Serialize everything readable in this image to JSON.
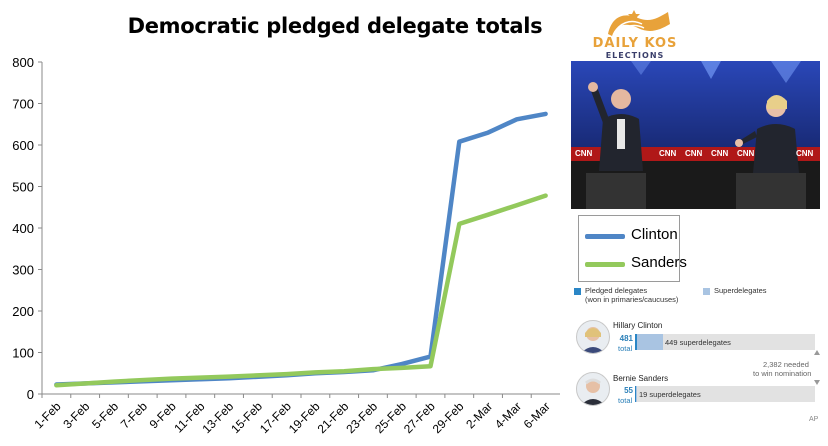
{
  "chart_data": {
    "type": "line",
    "title": "Democratic pledged delegate totals",
    "categories": [
      "1-Feb",
      "3-Feb",
      "5-Feb",
      "7-Feb",
      "9-Feb",
      "11-Feb",
      "13-Feb",
      "15-Feb",
      "17-Feb",
      "19-Feb",
      "21-Feb",
      "23-Feb",
      "25-Feb",
      "27-Feb",
      "29-Feb",
      "2-Mar",
      "4-Mar",
      "6-Mar"
    ],
    "ylim": [
      0,
      800
    ],
    "yticks": [
      0,
      100,
      200,
      300,
      400,
      500,
      600,
      700,
      800
    ],
    "grid": false,
    "legend_position": "right",
    "series": [
      {
        "name": "Clinton",
        "color": "#4f86c6",
        "points": [
          [
            0,
            23
          ],
          [
            2,
            28
          ],
          [
            4,
            33
          ],
          [
            6,
            38
          ],
          [
            8,
            45
          ],
          [
            9,
            50
          ],
          [
            10,
            53
          ],
          [
            11,
            57
          ],
          [
            12,
            72
          ],
          [
            13,
            90
          ],
          [
            14,
            608
          ],
          [
            15,
            630
          ],
          [
            16,
            662
          ],
          [
            17,
            675
          ]
        ]
      },
      {
        "name": "Sanders",
        "color": "#93c95c",
        "points": [
          [
            0,
            21
          ],
          [
            2,
            30
          ],
          [
            4,
            37
          ],
          [
            6,
            42
          ],
          [
            8,
            48
          ],
          [
            9,
            52
          ],
          [
            10,
            55
          ],
          [
            11,
            60
          ],
          [
            12,
            63
          ],
          [
            13,
            67
          ],
          [
            14,
            410
          ],
          [
            15,
            432
          ],
          [
            16,
            455
          ],
          [
            17,
            478
          ]
        ]
      }
    ]
  },
  "logo": {
    "line1": "DAILY KOS",
    "line2": "ELECTIONS"
  },
  "photo": {
    "signs": [
      "CNN",
      "CNN",
      "CNN",
      "CNN",
      "CNN",
      "CNN"
    ]
  },
  "delegates": {
    "legend_pledged": "Pledged delegates",
    "legend_pledged_sub": "(won in primaries/caucuses)",
    "legend_super": "Superdelegates",
    "clinton_name": "Hillary Clinton",
    "clinton_pledged": "481",
    "clinton_total_label": "total",
    "clinton_super": "449 superdelegates",
    "needed_line1": "2,382 needed",
    "needed_line2": "to win nomination",
    "sanders_name": "Bernie Sanders",
    "sanders_pledged": "55",
    "sanders_total_label": "total",
    "sanders_super": "19 superdelegates",
    "source": "AP",
    "pledged_color": "#2a86c6",
    "super_color": "#a9c4e2"
  }
}
